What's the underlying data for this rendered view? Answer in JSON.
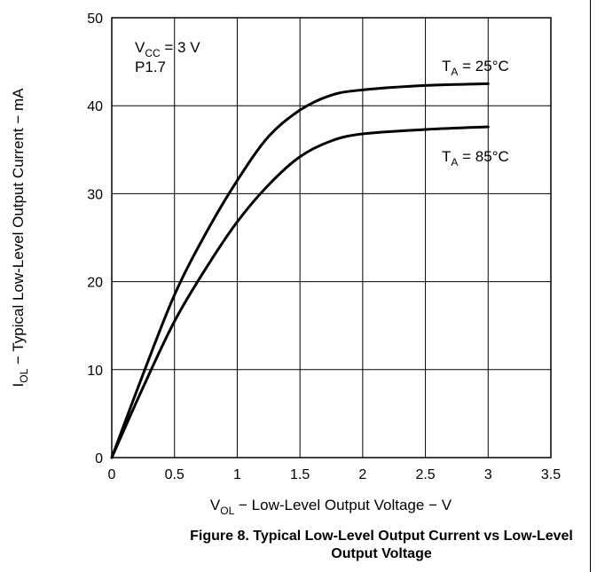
{
  "chart_data": {
    "type": "line",
    "xlim": [
      0,
      3.5
    ],
    "ylim": [
      0,
      50
    ],
    "grid": true,
    "x_ticks": [
      "0",
      "0.5",
      "1",
      "1.5",
      "2",
      "2.5",
      "3",
      "3.5"
    ],
    "y_ticks": [
      "0",
      "10",
      "20",
      "30",
      "40",
      "50"
    ],
    "xlabel": {
      "main": "V",
      "sub": "OL",
      "rest": " − Low-Level Output Voltage − V"
    },
    "ylabel": {
      "main": "I",
      "sub": "OL",
      "rest": " − Typical Low-Level Output Current − mA"
    },
    "conditions": {
      "vcc": {
        "main": "V",
        "sub": "CC",
        "rest": " = 3 V"
      },
      "pin": "P1.7"
    },
    "series": [
      {
        "name": {
          "main": "T",
          "sub": "A",
          "rest": " = 25°C"
        },
        "x": [
          0,
          0.25,
          0.5,
          0.75,
          1.0,
          1.25,
          1.5,
          1.75,
          2.0,
          2.5,
          3.0
        ],
        "values": [
          0,
          9.5,
          18.5,
          25.5,
          31.5,
          36.5,
          39.5,
          41.2,
          41.8,
          42.3,
          42.5
        ]
      },
      {
        "name": {
          "main": "T",
          "sub": "A",
          "rest": " = 85°C"
        },
        "x": [
          0,
          0.25,
          0.5,
          0.75,
          1.0,
          1.25,
          1.5,
          1.75,
          2.0,
          2.5,
          3.0
        ],
        "values": [
          0,
          8.0,
          15.5,
          21.5,
          26.8,
          31.0,
          34.2,
          36.0,
          36.8,
          37.3,
          37.6
        ]
      }
    ]
  },
  "caption": {
    "line1": "Figure 8. Typical Low-Level Output Current vs Low-Level",
    "line2": "Output Voltage"
  }
}
